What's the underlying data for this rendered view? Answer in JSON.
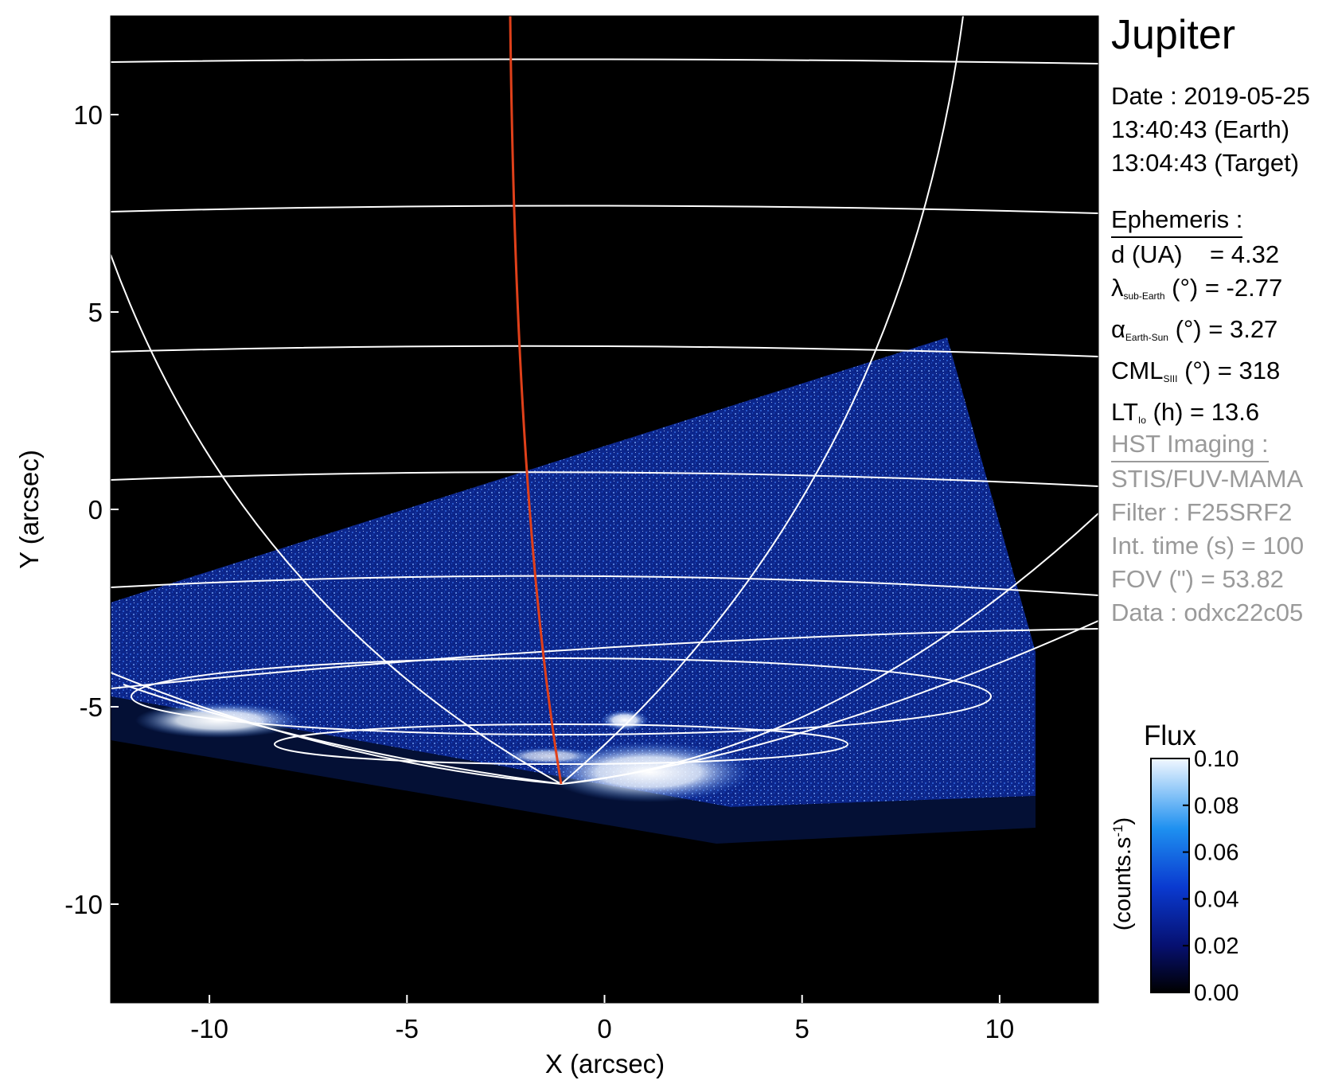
{
  "panel": {
    "target": "Jupiter",
    "date_label": "Date : 2019-05-25",
    "time_earth": "13:40:43 (Earth)",
    "time_target": "13:04:43 (Target)"
  },
  "ephemeris": {
    "header": "Ephemeris :",
    "d": {
      "label": "d (UA)",
      "value": "= 4.32"
    },
    "lambda": {
      "symbol": "λ",
      "sub": "sub-Earth",
      "unit": "(°)",
      "value": "= -2.77"
    },
    "alpha": {
      "symbol": "α",
      "sub": "Earth-Sun",
      "unit": "(°)",
      "value": "= 3.27"
    },
    "cml": {
      "symbol": "CML",
      "sub": "SIII",
      "unit": "(°)",
      "value": "= 318"
    },
    "lt": {
      "symbol": "LT",
      "sub": "Io",
      "unit": "(h)",
      "value": "= 13.6"
    }
  },
  "hst": {
    "header": "HST Imaging :",
    "instrument": "STIS/FUV-MAMA",
    "filter": "Filter : F25SRF2",
    "int_time": "Int. time (s) = 100",
    "fov": "FOV (\") = 53.82",
    "data": "Data : odxc22c05"
  },
  "colorbar": {
    "title": "Flux",
    "unit_base": "(counts.s",
    "unit_exp": "-1",
    "unit_close": ")",
    "ticks": [
      0.0,
      0.02,
      0.04,
      0.06,
      0.08,
      0.1
    ],
    "tick_labels": [
      "0.00",
      "0.02",
      "0.04",
      "0.06",
      "0.08",
      "0.10"
    ],
    "range": [
      0.0,
      0.1
    ]
  },
  "axes": {
    "xlabel": "X (arcsec)",
    "ylabel": "Y (arcsec)",
    "xlim": [
      -12.5,
      12.5
    ],
    "ylim": [
      -12.5,
      12.5
    ],
    "xticks": [
      -10,
      -5,
      0,
      5,
      10
    ],
    "yticks": [
      -10,
      -5,
      0,
      5,
      10
    ],
    "xtick_labels": [
      "-10",
      "-5",
      "0",
      "5",
      "10"
    ],
    "ytick_labels": [
      "-10",
      "-5",
      "0",
      "5",
      "10"
    ]
  },
  "colors": {
    "background": "#000000",
    "grid": "#ffffff",
    "meridian": "#e0401a",
    "hst_text": "#9a9a9a",
    "emission": "#1f4fd0"
  }
}
